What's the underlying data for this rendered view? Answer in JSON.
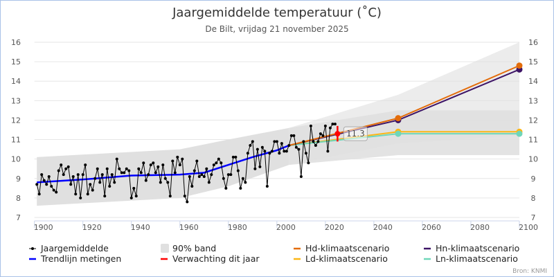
{
  "chart_data": {
    "type": "line",
    "title": "Jaargemiddelde temperatuur (˚C)",
    "subtitle": "De Bilt, vrijdag 21 november 2025",
    "source": "Bron: KNMI",
    "xlim": [
      1900,
      2100
    ],
    "ylim": [
      7,
      16
    ],
    "x_ticks": [
      "1900",
      "1920",
      "1940",
      "1960",
      "1980",
      "2000",
      "2020",
      "2040",
      "2060",
      "2080",
      "2100"
    ],
    "y_ticks": [
      "7",
      "8",
      "9",
      "10",
      "11",
      "12",
      "13",
      "14",
      "15",
      "16"
    ],
    "grid": true,
    "legend_placement": "bottom",
    "series": [
      {
        "name": "Jaargemiddelde",
        "color": "#000000",
        "x_start": 1901,
        "values": [
          8.7,
          8.2,
          9.2,
          8.9,
          8.7,
          9.1,
          8.6,
          8.4,
          8.3,
          9.4,
          9.7,
          9.2,
          9.5,
          9.6,
          8.7,
          9.1,
          8.2,
          9.2,
          8.0,
          9.2,
          9.7,
          8.2,
          8.7,
          8.4,
          9.0,
          9.5,
          8.8,
          9.2,
          8.1,
          9.5,
          8.6,
          9.2,
          8.8,
          10.0,
          9.5,
          9.3,
          9.3,
          9.5,
          9.4,
          8.0,
          8.5,
          8.1,
          9.5,
          9.3,
          9.8,
          8.9,
          9.2,
          9.7,
          9.8,
          9.3,
          9.6,
          8.8,
          9.7,
          9.0,
          8.8,
          8.1,
          9.9,
          9.3,
          10.1,
          9.7,
          10.0,
          8.1,
          7.8,
          9.1,
          8.6,
          9.4,
          9.9,
          9.1,
          9.2,
          9.1,
          9.5,
          8.8,
          9.2,
          9.7,
          9.8,
          10.0,
          9.8,
          9.0,
          8.5,
          9.2,
          9.2,
          10.1,
          10.1,
          9.4,
          8.5,
          9.0,
          8.8,
          10.3,
          10.7,
          10.9,
          9.5,
          10.5,
          9.6,
          10.6,
          10.4,
          8.6,
          10.3,
          10.4,
          10.9,
          10.9,
          10.3,
          10.8,
          10.4,
          10.4,
          10.7,
          11.2,
          11.2,
          10.6,
          10.5,
          9.1,
          10.9,
          10.3,
          9.8,
          11.7,
          10.9,
          10.7,
          10.9,
          11.3,
          11.2,
          11.7,
          10.4,
          11.6,
          11.8,
          11.8
        ]
      },
      {
        "name": "Trendlijn metingen",
        "color": "#0000ff",
        "points": [
          [
            1901,
            8.8
          ],
          [
            1920,
            8.95
          ],
          [
            1940,
            9.15
          ],
          [
            1960,
            9.2
          ],
          [
            1970,
            9.3
          ],
          [
            1980,
            9.7
          ],
          [
            1990,
            10.1
          ],
          [
            2000,
            10.45
          ],
          [
            2005,
            10.7
          ]
        ]
      },
      {
        "name": "Hd-klimaatscenario",
        "color": "#e36c0a",
        "points": [
          [
            2005,
            10.7
          ],
          [
            2050,
            12.1
          ],
          [
            2100,
            14.8
          ]
        ]
      },
      {
        "name": "Hn-klimaatscenario",
        "color": "#3d1466",
        "points": [
          [
            2005,
            10.7
          ],
          [
            2050,
            12.0
          ],
          [
            2100,
            14.6
          ]
        ]
      },
      {
        "name": "Ld-klimaatscenario",
        "color": "#fbb616",
        "points": [
          [
            2005,
            10.7
          ],
          [
            2050,
            11.4
          ],
          [
            2100,
            11.4
          ]
        ]
      },
      {
        "name": "Ln-klimaatscenario",
        "color": "#6fd6b9",
        "points": [
          [
            2005,
            10.7
          ],
          [
            2050,
            11.3
          ],
          [
            2100,
            11.3
          ]
        ]
      }
    ],
    "band": {
      "name": "90% band",
      "color": "#e0e0e0",
      "historical": [
        [
          1901,
          7.6,
          10.1
        ],
        [
          1960,
          8.0,
          10.5
        ],
        [
          1980,
          8.6,
          11.0
        ],
        [
          2005,
          9.7,
          11.6
        ]
      ],
      "scenario_high": [
        [
          2005,
          9.7,
          11.6
        ],
        [
          2050,
          10.8,
          13.3
        ],
        [
          2100,
          11.2,
          16.0
        ]
      ],
      "scenario_low": [
        [
          2005,
          9.7,
          11.6
        ],
        [
          2050,
          10.2,
          12.5
        ],
        [
          2100,
          10.2,
          12.5
        ]
      ]
    },
    "prediction": {
      "name": "Verwachting dit jaar",
      "color": "#ff0000",
      "year": 2025,
      "value": 11.3,
      "low": 10.9,
      "high": 11.7,
      "label": "11.3"
    }
  },
  "legend": [
    {
      "label": "Jaargemiddelde",
      "color": "#000000",
      "kind": "dotline"
    },
    {
      "label": "90% band",
      "color": "#e0e0e0",
      "kind": "box"
    },
    {
      "label": "Hd-klimaatscenario",
      "color": "#e36c0a",
      "kind": "line"
    },
    {
      "label": "Hn-klimaatscenario",
      "color": "#3d1466",
      "kind": "line"
    },
    {
      "label": "Trendlijn metingen",
      "color": "#0000ff",
      "kind": "line"
    },
    {
      "label": "Verwachting dit jaar",
      "color": "#ff0000",
      "kind": "line"
    },
    {
      "label": "Ld-klimaatscenario",
      "color": "#fbb616",
      "kind": "line"
    },
    {
      "label": "Ln-klimaatscenario",
      "color": "#6fd6b9",
      "kind": "line"
    }
  ]
}
